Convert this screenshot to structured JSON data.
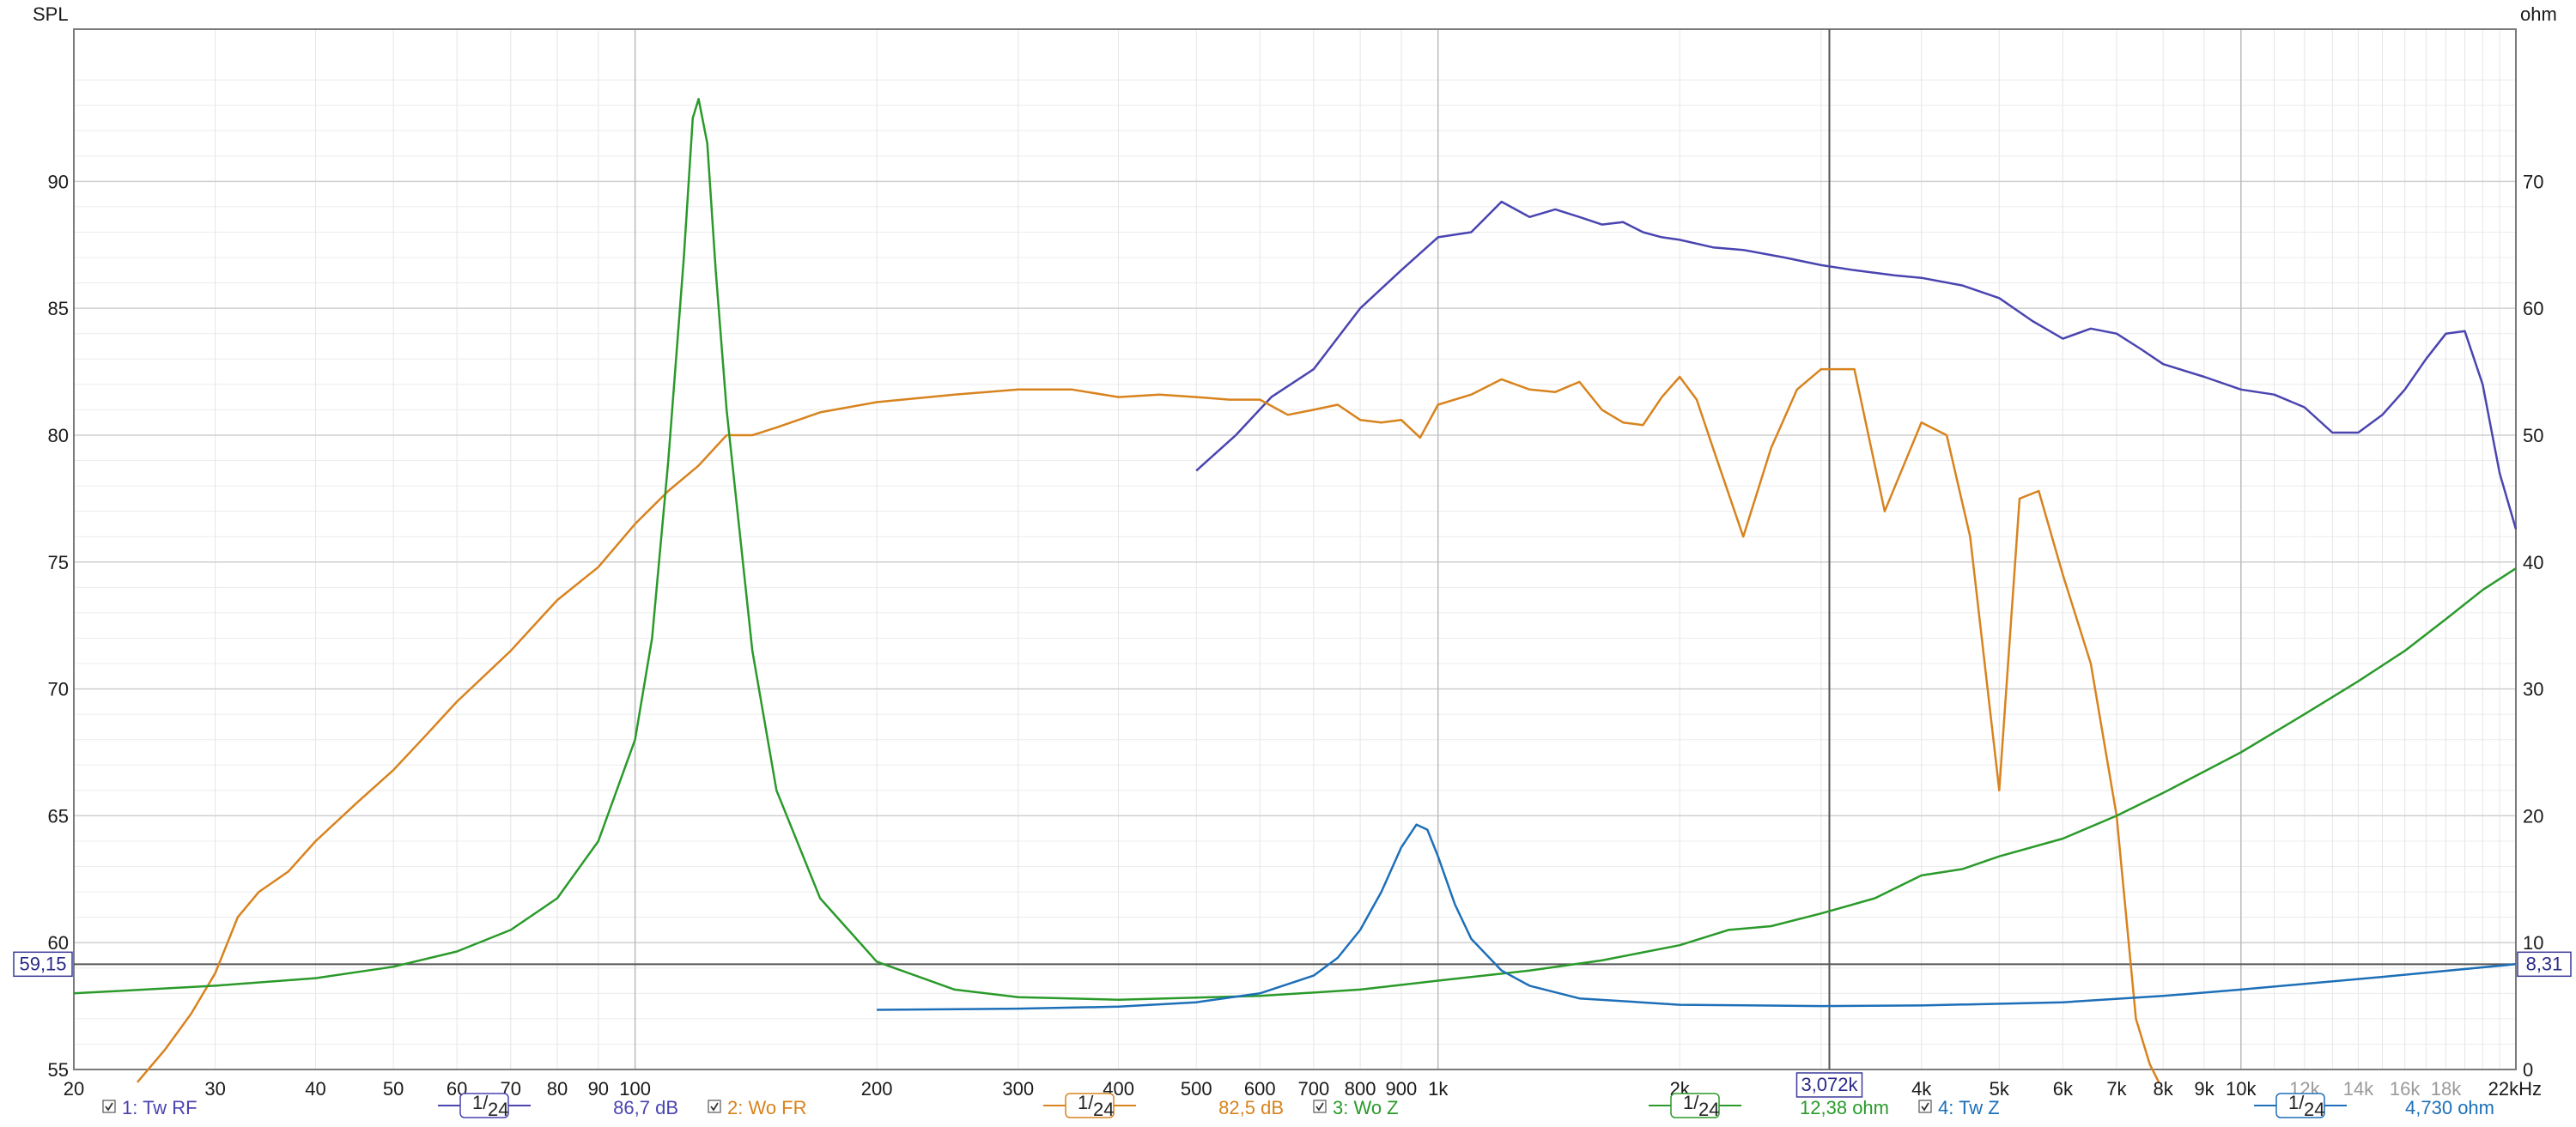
{
  "chart_data": {
    "type": "line",
    "left_axis": {
      "label": "SPL",
      "ticks": [
        "55",
        "60",
        "65",
        "70",
        "75",
        "80",
        "85",
        "90"
      ],
      "ylim": [
        55,
        96
      ]
    },
    "right_axis": {
      "label": "ohm",
      "ticks": [
        "0",
        "10",
        "20",
        "30",
        "40",
        "50",
        "60",
        "70"
      ],
      "ylim": [
        0,
        82
      ]
    },
    "x_axis": {
      "scale": "log",
      "xlim": [
        20,
        22000
      ],
      "unit": "kHz",
      "ticks": [
        {
          "v": 20,
          "label": "20"
        },
        {
          "v": 30,
          "label": "30"
        },
        {
          "v": 40,
          "label": "40"
        },
        {
          "v": 50,
          "label": "50"
        },
        {
          "v": 60,
          "label": "60"
        },
        {
          "v": 70,
          "label": "70"
        },
        {
          "v": 80,
          "label": "80"
        },
        {
          "v": 90,
          "label": "90"
        },
        {
          "v": 100,
          "label": "100"
        },
        {
          "v": 200,
          "label": "200"
        },
        {
          "v": 300,
          "label": "300"
        },
        {
          "v": 400,
          "label": "400"
        },
        {
          "v": 500,
          "label": "500"
        },
        {
          "v": 600,
          "label": "600"
        },
        {
          "v": 700,
          "label": "700"
        },
        {
          "v": 800,
          "label": "800"
        },
        {
          "v": 900,
          "label": "900"
        },
        {
          "v": 1000,
          "label": "1k"
        },
        {
          "v": 2000,
          "label": "2k"
        },
        {
          "v": 4000,
          "label": "4k"
        },
        {
          "v": 5000,
          "label": "5k"
        },
        {
          "v": 6000,
          "label": "6k"
        },
        {
          "v": 7000,
          "label": "7k"
        },
        {
          "v": 8000,
          "label": "8k"
        },
        {
          "v": 9000,
          "label": "9k"
        },
        {
          "v": 10000,
          "label": "10k"
        },
        {
          "v": 12000,
          "label": "12k",
          "faint": true
        },
        {
          "v": 14000,
          "label": "14k",
          "faint": true
        },
        {
          "v": 16000,
          "label": "16k",
          "faint": true
        },
        {
          "v": 18000,
          "label": "18k",
          "faint": true
        },
        {
          "v": 22000,
          "label": "22kHz"
        }
      ]
    },
    "grid": true,
    "cursor": {
      "x": 3072,
      "x_label": "3,072k",
      "y_left": 59.15,
      "y_left_label": "59,15",
      "y_right": 8.31,
      "y_right_label": "8,31"
    },
    "series": [
      {
        "name": "1: Tw RF",
        "axis": "left",
        "color": "#4a44b0",
        "smoothing": "1/24",
        "readout": "86,7 dB",
        "points": [
          [
            500,
            78.6
          ],
          [
            560,
            80.0
          ],
          [
            620,
            81.5
          ],
          [
            700,
            82.6
          ],
          [
            800,
            85.0
          ],
          [
            900,
            86.5
          ],
          [
            1000,
            87.8
          ],
          [
            1100,
            88.0
          ],
          [
            1200,
            89.2
          ],
          [
            1300,
            88.6
          ],
          [
            1400,
            88.9
          ],
          [
            1500,
            88.6
          ],
          [
            1600,
            88.3
          ],
          [
            1700,
            88.4
          ],
          [
            1800,
            88.0
          ],
          [
            1900,
            87.8
          ],
          [
            2000,
            87.7
          ],
          [
            2200,
            87.4
          ],
          [
            2400,
            87.3
          ],
          [
            2700,
            87.0
          ],
          [
            3000,
            86.7
          ],
          [
            3300,
            86.5
          ],
          [
            3700,
            86.3
          ],
          [
            4000,
            86.2
          ],
          [
            4500,
            85.9
          ],
          [
            5000,
            85.4
          ],
          [
            5500,
            84.5
          ],
          [
            6000,
            83.8
          ],
          [
            6500,
            84.2
          ],
          [
            7000,
            84.0
          ],
          [
            7500,
            83.4
          ],
          [
            8000,
            82.8
          ],
          [
            9000,
            82.3
          ],
          [
            10000,
            81.8
          ],
          [
            11000,
            81.6
          ],
          [
            12000,
            81.1
          ],
          [
            13000,
            80.1
          ],
          [
            14000,
            80.1
          ],
          [
            15000,
            80.8
          ],
          [
            16000,
            81.8
          ],
          [
            17000,
            83.0
          ],
          [
            18000,
            84.0
          ],
          [
            19000,
            84.1
          ],
          [
            20000,
            82.0
          ],
          [
            21000,
            78.5
          ],
          [
            22000,
            76.3
          ]
        ]
      },
      {
        "name": "2: Wo FR",
        "axis": "left",
        "color": "#d8831e",
        "smoothing": "1/24",
        "readout": "82,5 dB",
        "points": [
          [
            24,
            54.5
          ],
          [
            26,
            55.8
          ],
          [
            28,
            57.2
          ],
          [
            30,
            58.8
          ],
          [
            32,
            61.0
          ],
          [
            34,
            62.0
          ],
          [
            37,
            62.8
          ],
          [
            40,
            64.0
          ],
          [
            45,
            65.5
          ],
          [
            50,
            66.8
          ],
          [
            55,
            68.2
          ],
          [
            60,
            69.5
          ],
          [
            70,
            71.5
          ],
          [
            80,
            73.5
          ],
          [
            90,
            74.8
          ],
          [
            100,
            76.5
          ],
          [
            110,
            77.8
          ],
          [
            120,
            78.8
          ],
          [
            130,
            80.0
          ],
          [
            140,
            80.0
          ],
          [
            150,
            80.3
          ],
          [
            170,
            80.9
          ],
          [
            200,
            81.3
          ],
          [
            250,
            81.6
          ],
          [
            300,
            81.8
          ],
          [
            350,
            81.8
          ],
          [
            400,
            81.5
          ],
          [
            450,
            81.6
          ],
          [
            500,
            81.5
          ],
          [
            550,
            81.4
          ],
          [
            600,
            81.4
          ],
          [
            650,
            80.8
          ],
          [
            700,
            81.0
          ],
          [
            750,
            81.2
          ],
          [
            800,
            80.6
          ],
          [
            850,
            80.5
          ],
          [
            900,
            80.6
          ],
          [
            950,
            79.9
          ],
          [
            1000,
            81.2
          ],
          [
            1100,
            81.6
          ],
          [
            1200,
            82.2
          ],
          [
            1300,
            81.8
          ],
          [
            1400,
            81.7
          ],
          [
            1500,
            82.1
          ],
          [
            1600,
            81.0
          ],
          [
            1700,
            80.5
          ],
          [
            1800,
            80.4
          ],
          [
            1900,
            81.5
          ],
          [
            2000,
            82.3
          ],
          [
            2100,
            81.4
          ],
          [
            2200,
            79.5
          ],
          [
            2400,
            76.0
          ],
          [
            2600,
            79.5
          ],
          [
            2800,
            81.8
          ],
          [
            3000,
            82.6
          ],
          [
            3300,
            82.6
          ],
          [
            3600,
            77.0
          ],
          [
            4000,
            80.5
          ],
          [
            4300,
            80.0
          ],
          [
            4600,
            76.0
          ],
          [
            5000,
            66.0
          ],
          [
            5300,
            77.5
          ],
          [
            5600,
            77.8
          ],
          [
            6000,
            74.5
          ],
          [
            6500,
            71.0
          ],
          [
            7000,
            65.0
          ],
          [
            7400,
            57.0
          ],
          [
            7700,
            55.2
          ],
          [
            7900,
            54.5
          ]
        ]
      },
      {
        "name": "3: Wo Z",
        "axis": "right",
        "color": "#2a9a2a",
        "smoothing": "1/24",
        "readout": "12,38 ohm",
        "points": [
          [
            20,
            6.0
          ],
          [
            30,
            6.6
          ],
          [
            40,
            7.2
          ],
          [
            50,
            8.1
          ],
          [
            60,
            9.3
          ],
          [
            70,
            11.0
          ],
          [
            80,
            13.5
          ],
          [
            90,
            18.0
          ],
          [
            100,
            26.0
          ],
          [
            105,
            34.0
          ],
          [
            110,
            48.0
          ],
          [
            115,
            64.0
          ],
          [
            118,
            75.0
          ],
          [
            120,
            76.5
          ],
          [
            123,
            73.0
          ],
          [
            126,
            63.0
          ],
          [
            130,
            52.0
          ],
          [
            140,
            33.0
          ],
          [
            150,
            22.0
          ],
          [
            170,
            13.5
          ],
          [
            200,
            8.5
          ],
          [
            250,
            6.3
          ],
          [
            300,
            5.7
          ],
          [
            400,
            5.5
          ],
          [
            600,
            5.8
          ],
          [
            800,
            6.3
          ],
          [
            1000,
            7.0
          ],
          [
            1300,
            7.8
          ],
          [
            1600,
            8.6
          ],
          [
            2000,
            9.8
          ],
          [
            2300,
            11.0
          ],
          [
            2600,
            11.3
          ],
          [
            3000,
            12.3
          ],
          [
            3500,
            13.5
          ],
          [
            4000,
            15.3
          ],
          [
            4500,
            15.8
          ],
          [
            5000,
            16.8
          ],
          [
            6000,
            18.2
          ],
          [
            7000,
            20.0
          ],
          [
            8000,
            21.8
          ],
          [
            10000,
            25.0
          ],
          [
            12000,
            28.0
          ],
          [
            14000,
            30.6
          ],
          [
            16000,
            33.0
          ],
          [
            18000,
            35.5
          ],
          [
            20000,
            37.8
          ],
          [
            22000,
            39.5
          ]
        ]
      },
      {
        "name": "4: Tw Z",
        "axis": "right",
        "color": "#1d6fb8",
        "smoothing": "1/24",
        "readout": "4,730 ohm",
        "points": [
          [
            200,
            4.7
          ],
          [
            300,
            4.8
          ],
          [
            400,
            4.95
          ],
          [
            500,
            5.3
          ],
          [
            600,
            6.0
          ],
          [
            700,
            7.4
          ],
          [
            750,
            8.8
          ],
          [
            800,
            11.0
          ],
          [
            850,
            14.0
          ],
          [
            900,
            17.5
          ],
          [
            940,
            19.3
          ],
          [
            970,
            18.9
          ],
          [
            1000,
            16.8
          ],
          [
            1050,
            13.0
          ],
          [
            1100,
            10.3
          ],
          [
            1200,
            7.8
          ],
          [
            1300,
            6.6
          ],
          [
            1500,
            5.6
          ],
          [
            2000,
            5.1
          ],
          [
            3000,
            5.0
          ],
          [
            4000,
            5.05
          ],
          [
            6000,
            5.3
          ],
          [
            8000,
            5.8
          ],
          [
            10000,
            6.3
          ],
          [
            15000,
            7.3
          ],
          [
            22000,
            8.3
          ]
        ]
      }
    ]
  }
}
